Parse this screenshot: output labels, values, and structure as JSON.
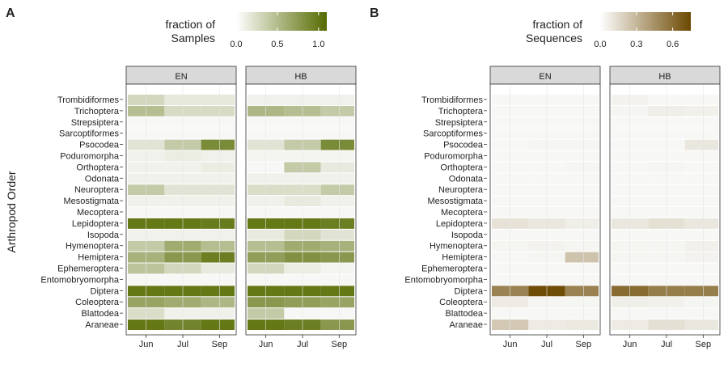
{
  "figure": {
    "y_axis_label": "Arthropod Order",
    "rows": [
      "Trombidiformes",
      "Trichoptera",
      "Strepsiptera",
      "Sarcoptiformes",
      "Psocodea",
      "Poduromorpha",
      "Orthoptera",
      "Odonata",
      "Neuroptera",
      "Mesostigmata",
      "Mecoptera",
      "Lepidoptera",
      "Isopoda",
      "Hymenoptera",
      "Hemiptera",
      "Ephemeroptera",
      "Entomobryomorpha",
      "Diptera",
      "Coleoptera",
      "Blattodea",
      "Araneae"
    ],
    "columns": [
      "Jun",
      "Jul",
      "Sep"
    ]
  },
  "chart_data": [
    {
      "type": "heatmap",
      "panel_label": "A",
      "legend_title": [
        "fraction of",
        "Samples"
      ],
      "legend_ticks": [
        "0.0",
        "0.5",
        "1.0"
      ],
      "legend_range": [
        0,
        1.1
      ],
      "color_low": "#ffffff",
      "color_high": "#556b00",
      "facets": [
        "EN",
        "HB"
      ],
      "xlabel": "",
      "ylabel": "Arthropod Order",
      "values": {
        "EN": [
          [
            0.25,
            0.12,
            0.12
          ],
          [
            0.45,
            0.22,
            0.22
          ],
          [
            0.0,
            0.0,
            0.0
          ],
          [
            0.0,
            0.0,
            0.0
          ],
          [
            0.15,
            0.35,
            0.85
          ],
          [
            0.05,
            0.08,
            0.05
          ],
          [
            0.05,
            0.05,
            0.08
          ],
          [
            0.05,
            0.05,
            0.05
          ],
          [
            0.35,
            0.15,
            0.15
          ],
          [
            0.05,
            0.05,
            0.05
          ],
          [
            0.0,
            0.0,
            0.0
          ],
          [
            1.0,
            1.0,
            0.97
          ],
          [
            0.05,
            0.05,
            0.05
          ],
          [
            0.35,
            0.6,
            0.45
          ],
          [
            0.55,
            0.75,
            0.95
          ],
          [
            0.4,
            0.25,
            0.1
          ],
          [
            0.0,
            0.0,
            0.0
          ],
          [
            1.0,
            1.0,
            1.0
          ],
          [
            0.65,
            0.6,
            0.5
          ],
          [
            0.2,
            0.05,
            0.05
          ],
          [
            1.0,
            0.9,
            1.0
          ]
        ],
        "HB": [
          [
            0.05,
            0.05,
            0.05
          ],
          [
            0.5,
            0.45,
            0.35
          ],
          [
            0.0,
            0.0,
            0.0
          ],
          [
            0.0,
            0.0,
            0.0
          ],
          [
            0.15,
            0.35,
            0.85
          ],
          [
            0.02,
            0.02,
            0.02
          ],
          [
            0.0,
            0.35,
            0.1
          ],
          [
            0.05,
            0.05,
            0.05
          ],
          [
            0.2,
            0.2,
            0.35
          ],
          [
            0.05,
            0.1,
            0.05
          ],
          [
            0.0,
            0.0,
            0.0
          ],
          [
            1.0,
            1.0,
            0.95
          ],
          [
            0.1,
            0.25,
            0.15
          ],
          [
            0.45,
            0.6,
            0.55
          ],
          [
            0.7,
            0.8,
            0.75
          ],
          [
            0.25,
            0.08,
            0.02
          ],
          [
            0.0,
            0.0,
            0.0
          ],
          [
            1.0,
            1.0,
            1.0
          ],
          [
            0.75,
            0.7,
            0.65
          ],
          [
            0.35,
            0.0,
            0.0
          ],
          [
            1.0,
            0.95,
            0.75
          ]
        ]
      }
    },
    {
      "type": "heatmap",
      "panel_label": "B",
      "legend_title": [
        "fraction of",
        "Sequences"
      ],
      "legend_ticks": [
        "0.0",
        "0.3",
        "0.6"
      ],
      "legend_range": [
        0,
        0.75
      ],
      "color_low": "#ffffff",
      "color_high": "#6b4800",
      "facets": [
        "EN",
        "HB"
      ],
      "xlabel": "",
      "ylabel": "",
      "values": {
        "EN": [
          [
            0.0,
            0.0,
            0.0
          ],
          [
            0.0,
            0.0,
            0.0
          ],
          [
            0.0,
            0.0,
            0.0
          ],
          [
            0.0,
            0.0,
            0.0
          ],
          [
            0.0,
            0.01,
            0.01
          ],
          [
            0.0,
            0.0,
            0.0
          ],
          [
            0.0,
            0.0,
            0.01
          ],
          [
            0.0,
            0.0,
            0.0
          ],
          [
            0.0,
            0.0,
            0.0
          ],
          [
            0.0,
            0.0,
            0.0
          ],
          [
            0.0,
            0.0,
            0.0
          ],
          [
            0.09,
            0.07,
            0.04
          ],
          [
            0.0,
            0.0,
            0.0
          ],
          [
            0.01,
            0.02,
            0.01
          ],
          [
            0.0,
            0.01,
            0.22
          ],
          [
            0.0,
            0.0,
            0.0
          ],
          [
            0.0,
            0.0,
            0.0
          ],
          [
            0.5,
            0.73,
            0.5
          ],
          [
            0.05,
            0.01,
            0.01
          ],
          [
            0.0,
            0.0,
            0.0
          ],
          [
            0.2,
            0.05,
            0.06
          ]
        ],
        "HB": [
          [
            0.02,
            0.0,
            0.0
          ],
          [
            0.01,
            0.04,
            0.03
          ],
          [
            0.0,
            0.0,
            0.0
          ],
          [
            0.0,
            0.0,
            0.0
          ],
          [
            0.0,
            0.0,
            0.07
          ],
          [
            0.0,
            0.0,
            0.0
          ],
          [
            0.0,
            0.01,
            0.0
          ],
          [
            0.0,
            0.0,
            0.0
          ],
          [
            0.0,
            0.0,
            0.0
          ],
          [
            0.0,
            0.0,
            0.0
          ],
          [
            0.0,
            0.0,
            0.0
          ],
          [
            0.07,
            0.1,
            0.07
          ],
          [
            0.0,
            0.0,
            0.0
          ],
          [
            0.01,
            0.01,
            0.03
          ],
          [
            0.01,
            0.01,
            0.02
          ],
          [
            0.0,
            0.0,
            0.0
          ],
          [
            0.0,
            0.0,
            0.0
          ],
          [
            0.6,
            0.52,
            0.52
          ],
          [
            0.04,
            0.03,
            0.01
          ],
          [
            0.0,
            0.0,
            0.0
          ],
          [
            0.05,
            0.1,
            0.07
          ]
        ]
      }
    }
  ]
}
